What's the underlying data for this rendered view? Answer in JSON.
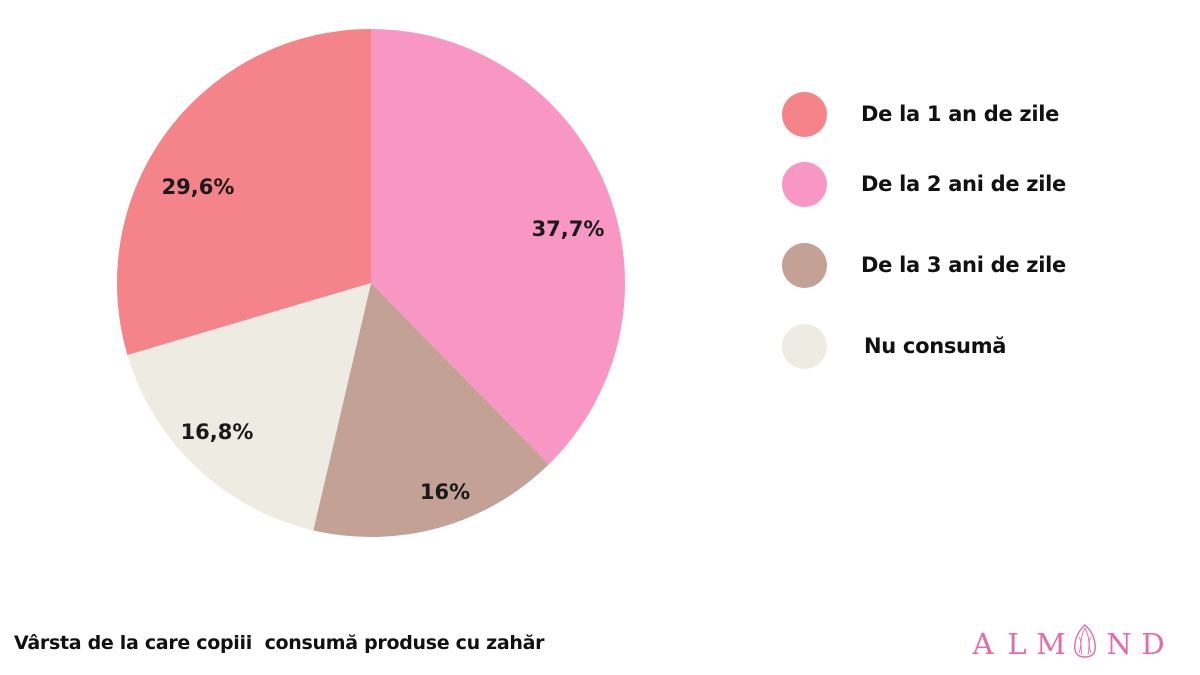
{
  "chart_data": {
    "type": "pie",
    "title": "Vârsta de la care copiii  consumă produse cu zahăr",
    "start_angle": "12 o'clock, clockwise",
    "categories": [
      "De la 2 ani de zile",
      "De la 3 ani de zile",
      "Nu consumă",
      "De la 1 an de zile"
    ],
    "values": [
      37.7,
      16,
      16.8,
      29.6
    ],
    "labels": [
      "37,7%",
      "16%",
      "16,8%",
      "29,6%"
    ],
    "colors": [
      "#f896c4",
      "#c3a194",
      "#eeebe3",
      "#f4838a"
    ],
    "legend_position": "right",
    "legend": [
      {
        "label": "De la 1 an de zile",
        "color": "#f4838a"
      },
      {
        "label": "De la 2 ani de zile",
        "color": "#f896c4"
      },
      {
        "label": "De la 3 ani de zile",
        "color": "#c3a194"
      },
      {
        "label": "Nu consumă",
        "color": "#eeebe3"
      }
    ]
  },
  "footer": {
    "title": "Vârsta de la care copiii  consumă produse cu zahăr",
    "logo_text": [
      "A",
      "L",
      "M",
      "N",
      "D"
    ],
    "logo_color": "#e46aa8",
    "logo_icon": "almond-icon"
  }
}
